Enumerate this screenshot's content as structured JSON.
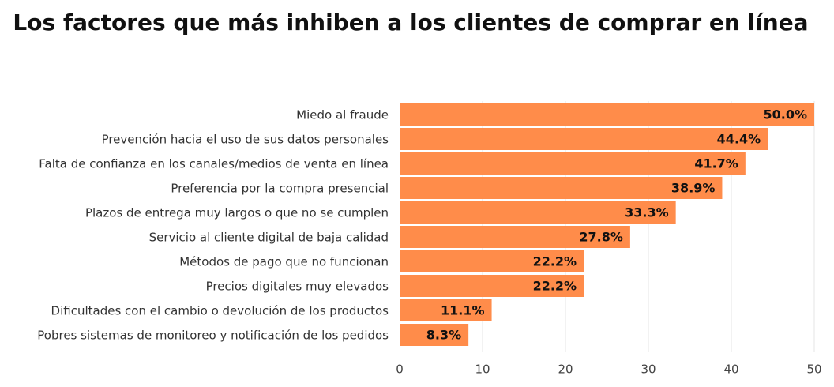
{
  "chart_data": {
    "type": "bar",
    "orientation": "horizontal",
    "title": "Los factores que más inhiben a los clientes de comprar en línea",
    "categories": [
      "Miedo al fraude",
      "Prevención hacia el uso de sus datos personales",
      "Falta de confianza en los canales/medios de venta en línea",
      "Preferencia por la compra presencial",
      "Plazos de entrega muy largos o que no se cumplen",
      "Servicio al cliente digital de baja calidad",
      "Métodos de pago que no funcionan",
      "Precios digitales muy elevados",
      "Dificultades con el cambio o devolución de los productos",
      "Pobres sistemas de monitoreo y notificación de los pedidos"
    ],
    "values": [
      50.0,
      44.4,
      41.7,
      38.9,
      33.3,
      27.8,
      22.2,
      22.2,
      11.1,
      8.3
    ],
    "value_labels": [
      "50.0%",
      "44.4%",
      "41.7%",
      "38.9%",
      "33.3%",
      "27.8%",
      "22.2%",
      "22.2%",
      "11.1%",
      "8.3%"
    ],
    "x_ticks": [
      0,
      10,
      20,
      30,
      40,
      50
    ],
    "xlim": [
      0,
      50
    ],
    "xlabel": "",
    "ylabel": "",
    "grid": true,
    "bar_color": "#FF8C4A",
    "grid_color": "#E6E6E6"
  }
}
